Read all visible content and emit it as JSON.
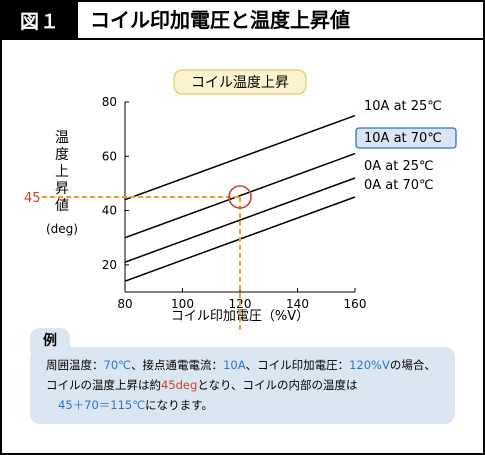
{
  "header": {
    "figure_label": "図１",
    "title": "コイル印加電圧と温度上昇値"
  },
  "chart_data": {
    "type": "line",
    "title": "コイル温度上昇",
    "xlabel": "コイル印加電圧（%V）",
    "ylabel": "温度上昇値",
    "ylabel_unit": "(deg)",
    "xlim": [
      80,
      160
    ],
    "ylim": [
      10,
      80
    ],
    "xticks": [
      80,
      100,
      120,
      140,
      160
    ],
    "yticks": [
      20,
      40,
      60,
      80
    ],
    "grid": false,
    "series": [
      {
        "name": "10A at 25℃",
        "x": [
          80,
          160
        ],
        "y": [
          44,
          75
        ],
        "highlighted": false
      },
      {
        "name": "10A at 70℃",
        "x": [
          80,
          160
        ],
        "y": [
          30,
          61
        ],
        "highlighted": true
      },
      {
        "name": "0A at 25℃",
        "x": [
          80,
          160
        ],
        "y": [
          21,
          52
        ],
        "highlighted": false
      },
      {
        "name": "0A at 70℃",
        "x": [
          80,
          160
        ],
        "y": [
          14,
          45
        ],
        "highlighted": false
      }
    ],
    "annotation": {
      "x": 120,
      "y": 45,
      "y_label": "45",
      "color": "#d0402a",
      "guide_color": "#f0a020"
    },
    "colors": {
      "line": "#000000",
      "highlight_fill": "#dbe6f3",
      "highlight_border": "#2d74c4",
      "title_fill": "#fbf3d0"
    }
  },
  "example": {
    "label": "例",
    "line1": [
      {
        "text": "周囲温度：",
        "style": "normal"
      },
      {
        "text": "70℃",
        "style": "hl"
      },
      {
        "text": "、接点通電電流：",
        "style": "normal"
      },
      {
        "text": "10A",
        "style": "hl"
      },
      {
        "text": "、コイル印加電圧：",
        "style": "normal"
      },
      {
        "text": "120%V",
        "style": "hl"
      },
      {
        "text": "の場合、",
        "style": "normal"
      }
    ],
    "line2": [
      {
        "text": "コイルの温度上昇は約",
        "style": "normal"
      },
      {
        "text": "45deg",
        "style": "red"
      },
      {
        "text": "となり、コイルの内部の温度は",
        "style": "normal"
      }
    ],
    "line3": [
      {
        "text": "45＋70＝115℃",
        "style": "hl"
      },
      {
        "text": "になります。",
        "style": "normal"
      }
    ]
  }
}
